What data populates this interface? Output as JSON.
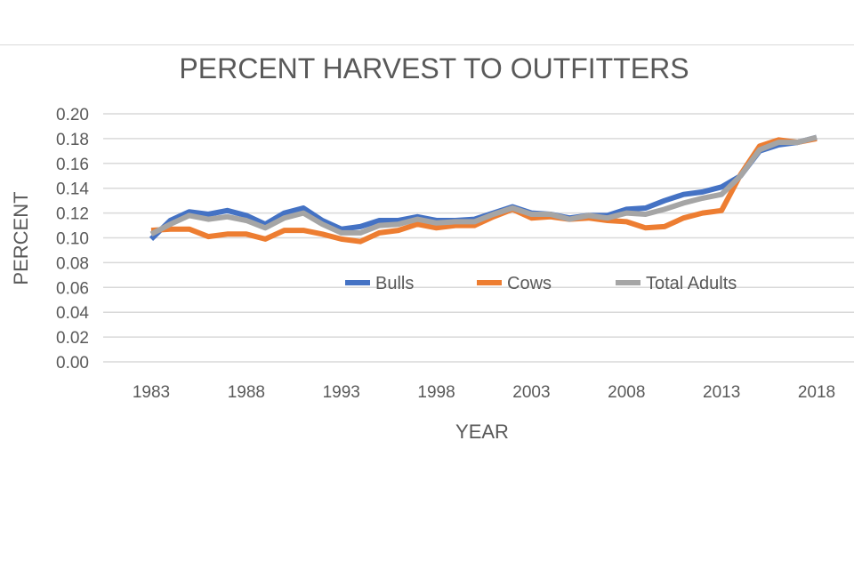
{
  "chart_data": {
    "type": "line",
    "title": "PERCENT HARVEST TO OUTFITTERS",
    "xlabel": "YEAR",
    "ylabel": "PERCENT",
    "x": [
      1983,
      1984,
      1985,
      1986,
      1987,
      1988,
      1989,
      1990,
      1991,
      1992,
      1993,
      1994,
      1995,
      1996,
      1997,
      1998,
      1999,
      2000,
      2001,
      2002,
      2003,
      2004,
      2005,
      2006,
      2007,
      2008,
      2009,
      2010,
      2011,
      2012,
      2013,
      2014,
      2015,
      2016,
      2017,
      2018
    ],
    "x_tick_labels": [
      "1983",
      "1988",
      "1993",
      "1998",
      "2003",
      "2008",
      "2013",
      "2018"
    ],
    "y_tick_labels": [
      "0.00",
      "0.02",
      "0.04",
      "0.06",
      "0.08",
      "0.10",
      "0.12",
      "0.14",
      "0.16",
      "0.18",
      "0.20"
    ],
    "xlim": [
      1983,
      2018
    ],
    "ylim": [
      0,
      0.2
    ],
    "grid": true,
    "legend_position": "inside-center",
    "series": [
      {
        "name": "Bulls",
        "color": "#4472c4",
        "values": [
          0.099,
          0.114,
          0.121,
          0.119,
          0.122,
          0.118,
          0.111,
          0.12,
          0.124,
          0.114,
          0.107,
          0.109,
          0.114,
          0.114,
          0.117,
          0.114,
          0.114,
          0.115,
          0.12,
          0.125,
          0.12,
          0.119,
          0.116,
          0.118,
          0.118,
          0.123,
          0.124,
          0.13,
          0.135,
          0.137,
          0.141,
          0.15,
          0.17,
          0.175,
          0.177,
          0.181
        ]
      },
      {
        "name": "Cows",
        "color": "#ed7d31",
        "values": [
          0.106,
          0.107,
          0.107,
          0.101,
          0.103,
          0.103,
          0.099,
          0.106,
          0.106,
          0.103,
          0.099,
          0.097,
          0.104,
          0.106,
          0.111,
          0.108,
          0.11,
          0.11,
          0.117,
          0.123,
          0.116,
          0.117,
          0.115,
          0.116,
          0.114,
          0.113,
          0.108,
          0.109,
          0.116,
          0.12,
          0.122,
          0.151,
          0.174,
          0.179,
          0.177,
          0.18
        ]
      },
      {
        "name": "Total Adults",
        "color": "#a5a5a5",
        "values": [
          0.103,
          0.111,
          0.118,
          0.115,
          0.117,
          0.114,
          0.108,
          0.116,
          0.12,
          0.111,
          0.104,
          0.104,
          0.11,
          0.111,
          0.115,
          0.112,
          0.113,
          0.113,
          0.119,
          0.124,
          0.119,
          0.119,
          0.115,
          0.118,
          0.116,
          0.12,
          0.119,
          0.123,
          0.128,
          0.132,
          0.135,
          0.15,
          0.171,
          0.177,
          0.177,
          0.181
        ]
      }
    ]
  }
}
